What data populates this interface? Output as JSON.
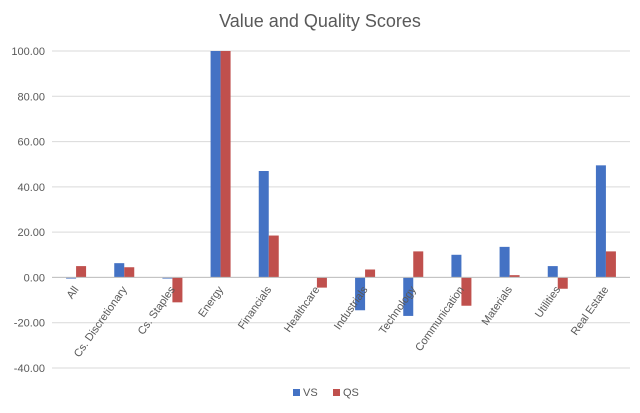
{
  "chart_data": {
    "type": "bar",
    "title": "Value and Quality Scores",
    "categories": [
      "All",
      "Cs. Discretionary",
      "Cs. Staples",
      "Energy",
      "Financials",
      "Healthcare",
      "Industrials",
      "Technology",
      "Communication",
      "Materials",
      "Utilities",
      "Real Estate"
    ],
    "series": [
      {
        "name": "VS",
        "color": "#4472C4",
        "values": [
          -0.5,
          6.3,
          -0.5,
          100.0,
          47.0,
          0.0,
          -14.5,
          -17.0,
          10.0,
          13.5,
          5.0,
          49.5
        ]
      },
      {
        "name": "QS",
        "color": "#C0504D",
        "values": [
          5.0,
          4.5,
          -11.0,
          100.0,
          18.5,
          -4.5,
          3.5,
          11.5,
          -12.5,
          1.0,
          -5.0,
          11.5
        ]
      }
    ],
    "ylim": [
      -40,
      100
    ],
    "yticks": [
      "100.00",
      "80.00",
      "60.00",
      "40.00",
      "20.00",
      "0.00",
      "-20.00",
      "-40.00"
    ],
    "grid": true,
    "legend_position": "bottom"
  }
}
